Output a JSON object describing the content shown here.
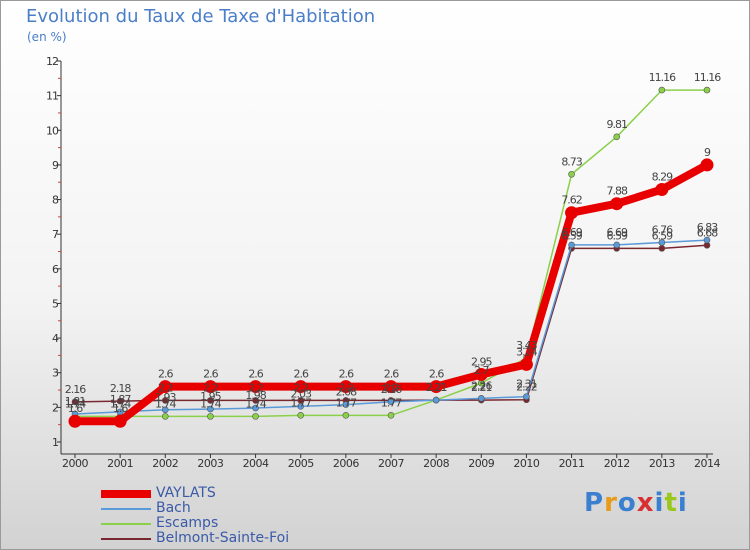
{
  "title": "Evolution du Taux de Taxe d'Habitation",
  "subtitle": "(en %)",
  "logo": {
    "text": "Proxiti",
    "colors": [
      "#3a7fd0",
      "#e89a1a",
      "#3a7fd0",
      "#d83030",
      "#3a7fd0",
      "#9ac81a",
      "#3a7fd0"
    ]
  },
  "chart_data": {
    "type": "line",
    "x": [
      "2000",
      "2001",
      "2002",
      "2003",
      "2004",
      "2005",
      "2006",
      "2007",
      "2008",
      "2009",
      "2010",
      "2011",
      "2012",
      "2013",
      "2014"
    ],
    "ylim": [
      1,
      12
    ],
    "yticks": [
      1,
      2,
      3,
      4,
      5,
      6,
      7,
      8,
      9,
      10,
      11,
      12
    ],
    "grid": false,
    "legend_position": "bottom-left",
    "series": [
      {
        "name": "Belmont-Sainte-Foi",
        "color": "#7a2830",
        "values": [
          2.16,
          2.18,
          2.2,
          2.2,
          2.2,
          2.2,
          2.2,
          2.2,
          2.21,
          2.21,
          2.22,
          6.59,
          6.59,
          6.59,
          6.68
        ],
        "labels": [
          "2.16",
          "2.18",
          "2.2",
          "2.2",
          "2.2",
          "2.2",
          "2.2",
          "2.2",
          "2.21",
          "2.21",
          "2.22",
          "6.59",
          "6.59",
          "6.59",
          "6.68"
        ]
      },
      {
        "name": "Escamps",
        "color": "#8ad048",
        "values": [
          1.74,
          1.74,
          1.74,
          1.74,
          1.74,
          1.77,
          1.77,
          1.77,
          2.21,
          2.7,
          3.43,
          8.73,
          9.81,
          11.16,
          11.16
        ],
        "labels": [
          "1.74",
          "1.74",
          "1.74",
          "1.74",
          "1.74",
          "1.77",
          "1.77",
          "1.77",
          "2.21",
          "2.7",
          "3.43",
          "8.73",
          "9.81",
          "11.16",
          "11.16"
        ]
      },
      {
        "name": "Bach",
        "color": "#5a9ad8",
        "values": [
          1.81,
          1.87,
          1.93,
          1.95,
          1.98,
          2.03,
          2.08,
          2.16,
          2.21,
          2.26,
          2.31,
          6.69,
          6.69,
          6.76,
          6.83
        ],
        "labels": [
          "1.81",
          "1.87",
          "1.93",
          "1.95",
          "1.98",
          "2.03",
          "2.08",
          "2.16",
          "2.21",
          "2.26",
          "2.31",
          "6.69",
          "6.69",
          "6.76",
          "6.83"
        ]
      },
      {
        "name": "VAYLATS",
        "color": "#e80000",
        "values": [
          1.6,
          1.6,
          2.6,
          2.6,
          2.6,
          2.6,
          2.6,
          2.6,
          2.6,
          2.95,
          3.24,
          7.62,
          7.88,
          8.29,
          9
        ],
        "labels": [
          "1.6",
          "1.6",
          "2.6",
          "2.6",
          "2.6",
          "2.6",
          "2.6",
          "2.6",
          "2.6",
          "2.95",
          "3.24",
          "7.62",
          "7.88",
          "8.29",
          "9"
        ]
      }
    ],
    "legend": [
      "VAYLATS",
      "Bach",
      "Escamps",
      "Belmont-Sainte-Foi"
    ]
  }
}
